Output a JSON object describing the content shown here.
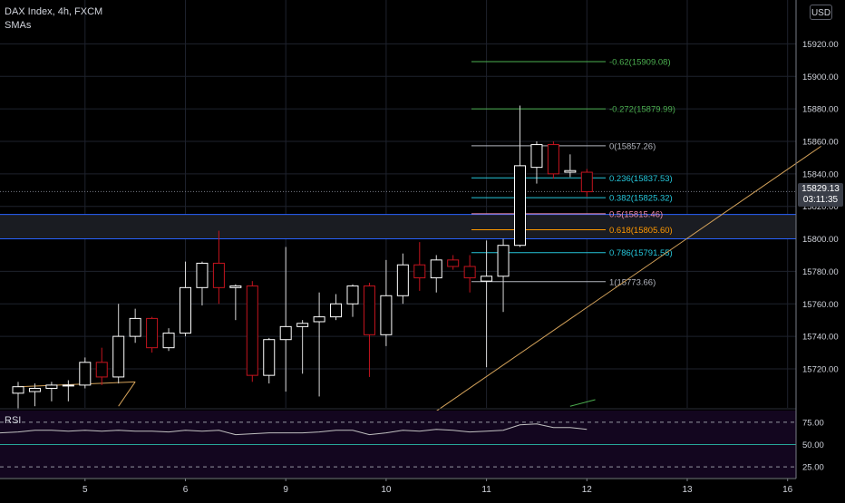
{
  "legend": {
    "symbol": "DAX Index, 4h, FXCM",
    "indicator": "SMAs"
  },
  "currency_button": "USD",
  "rsi": {
    "label": "RSI",
    "levels": [
      "75.00",
      "50.00",
      "25.00"
    ],
    "values": [
      64,
      66,
      66,
      65,
      66,
      65,
      66,
      65,
      65,
      64,
      66,
      65,
      66,
      61,
      62,
      63,
      63,
      63,
      64,
      66,
      66,
      61,
      63,
      66,
      65,
      67,
      66,
      64,
      65,
      66,
      72,
      73,
      69,
      69,
      67
    ]
  },
  "current_price": {
    "price": "15829.13",
    "countdown": "03:11:35"
  },
  "colors": {
    "background": "#000000",
    "grid": "#1e222d",
    "candle_up": "#ffffff",
    "candle_down": "#c4141e",
    "fib_neutral": "#b2b5be",
    "fib_green": "#4caf50",
    "fib_cyan": "#26c6da",
    "fib_orange": "#ff9800",
    "trendline": "#d4a25a",
    "zone_line": "#2962ff",
    "rsi_line": "#c0c0c0",
    "rsi_mid": "#26a69a"
  },
  "chart_data": {
    "type": "candlestick",
    "symbol": "DAX Index",
    "timeframe": "4h",
    "ylim": [
      15696,
      15947
    ],
    "y_ticks": [
      15720,
      15740,
      15760,
      15780,
      15800,
      15820,
      15840,
      15860,
      15880,
      15900,
      15920
    ],
    "y_tick_labels": [
      "15720.00",
      "15740.00",
      "15760.00",
      "15780.00",
      "15800.00",
      "15820.00",
      "15840.00",
      "15860.00",
      "15880.00",
      "15900.00",
      "15920.00"
    ],
    "x_ticks": [
      {
        "label": "5",
        "index": 4
      },
      {
        "label": "6",
        "index": 10
      },
      {
        "label": "9",
        "index": 16
      },
      {
        "label": "10",
        "index": 22
      },
      {
        "label": "11",
        "index": 28
      },
      {
        "label": "12",
        "index": 34
      },
      {
        "label": "13",
        "index": 40
      },
      {
        "label": "16",
        "index": 46
      }
    ],
    "candles": [
      {
        "o": 15705,
        "h": 15712,
        "l": 15695,
        "c": 15709
      },
      {
        "o": 15706,
        "h": 15711,
        "l": 15697,
        "c": 15708
      },
      {
        "o": 15708,
        "h": 15712,
        "l": 15700,
        "c": 15710
      },
      {
        "o": 15710,
        "h": 15713,
        "l": 15700,
        "c": 15710
      },
      {
        "o": 15710,
        "h": 15727,
        "l": 15708,
        "c": 15724
      },
      {
        "o": 15724,
        "h": 15733,
        "l": 15710,
        "c": 15715
      },
      {
        "o": 15715,
        "h": 15760,
        "l": 15711,
        "c": 15740
      },
      {
        "o": 15740,
        "h": 15757,
        "l": 15736,
        "c": 15751
      },
      {
        "o": 15751,
        "h": 15752,
        "l": 15730,
        "c": 15733
      },
      {
        "o": 15733,
        "h": 15745,
        "l": 15731,
        "c": 15742
      },
      {
        "o": 15742,
        "h": 15786,
        "l": 15740,
        "c": 15770
      },
      {
        "o": 15770,
        "h": 15786,
        "l": 15759,
        "c": 15785
      },
      {
        "o": 15785,
        "h": 15805,
        "l": 15760,
        "c": 15770
      },
      {
        "o": 15770,
        "h": 15772,
        "l": 15750,
        "c": 15771
      },
      {
        "o": 15771,
        "h": 15774,
        "l": 15712,
        "c": 15716
      },
      {
        "o": 15716,
        "h": 15739,
        "l": 15711,
        "c": 15738
      },
      {
        "o": 15738,
        "h": 15795,
        "l": 15706,
        "c": 15746
      },
      {
        "o": 15746,
        "h": 15750,
        "l": 15717,
        "c": 15748
      },
      {
        "o": 15749,
        "h": 15767,
        "l": 15703,
        "c": 15752
      },
      {
        "o": 15752,
        "h": 15766,
        "l": 15750,
        "c": 15760
      },
      {
        "o": 15760,
        "h": 15772,
        "l": 15752,
        "c": 15771
      },
      {
        "o": 15771,
        "h": 15773,
        "l": 15715,
        "c": 15741
      },
      {
        "o": 15741,
        "h": 15787,
        "l": 15734,
        "c": 15765
      },
      {
        "o": 15765,
        "h": 15791,
        "l": 15760,
        "c": 15784
      },
      {
        "o": 15784,
        "h": 15798,
        "l": 15768,
        "c": 15776
      },
      {
        "o": 15776,
        "h": 15790,
        "l": 15767,
        "c": 15787
      },
      {
        "o": 15787,
        "h": 15790,
        "l": 15781,
        "c": 15783
      },
      {
        "o": 15783,
        "h": 15790,
        "l": 15767,
        "c": 15776
      },
      {
        "o": 15774,
        "h": 15799,
        "l": 15721,
        "c": 15777
      },
      {
        "o": 15777,
        "h": 15800,
        "l": 15755,
        "c": 15796
      },
      {
        "o": 15796,
        "h": 15882,
        "l": 15795,
        "c": 15845
      },
      {
        "o": 15844,
        "h": 15860,
        "l": 15834,
        "c": 15858
      },
      {
        "o": 15858,
        "h": 15860,
        "l": 15837,
        "c": 15840
      },
      {
        "o": 15841,
        "h": 15852,
        "l": 15838,
        "c": 15842
      },
      {
        "o": 15841,
        "h": 15843,
        "l": 15826,
        "c": 15829
      }
    ],
    "fib_levels": [
      {
        "label": "-0.62(15909.08)",
        "price": 15909.08,
        "color": "#4caf50"
      },
      {
        "label": "-0.272(15879.99)",
        "price": 15879.99,
        "color": "#4caf50"
      },
      {
        "label": "0(15857.26)",
        "price": 15857.26,
        "color": "#b2b5be"
      },
      {
        "label": "0.236(15837.53)",
        "price": 15837.53,
        "color": "#26c6da"
      },
      {
        "label": "0.382(15825.32)",
        "price": 15825.32,
        "color": "#26c6da"
      },
      {
        "label": "0.5(15815.46)",
        "price": 15815.46,
        "color": "#f48fb1"
      },
      {
        "label": "0.618(15805.60)",
        "price": 15805.6,
        "color": "#ff9800"
      },
      {
        "label": "0.786(15791.55)",
        "price": 15791.55,
        "color": "#26c6da"
      },
      {
        "label": "1(15773.66)",
        "price": 15773.66,
        "color": "#b2b5be"
      }
    ],
    "zone": {
      "top": 15815,
      "bottom": 15800
    },
    "trendline": {
      "start": {
        "index": 25,
        "price": 15694
      },
      "end": {
        "index": 48,
        "price": 15857
      }
    }
  }
}
